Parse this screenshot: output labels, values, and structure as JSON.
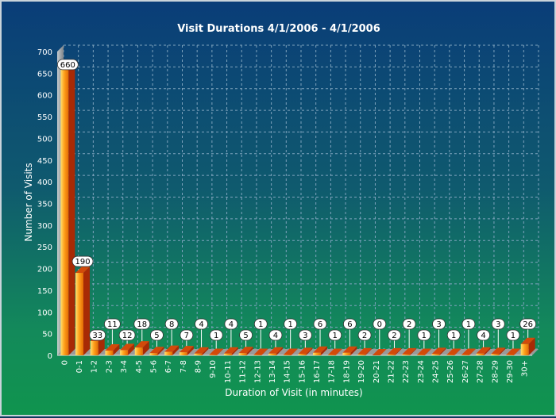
{
  "chart_data": {
    "type": "bar",
    "title": "Visit Durations 4/1/2006  - 4/1/2006",
    "xlabel": "Duration of Visit (in minutes)",
    "ylabel": "Number of Visits",
    "ylim": [
      0,
      700
    ],
    "yticks": [
      0,
      50,
      100,
      150,
      200,
      250,
      300,
      350,
      400,
      450,
      500,
      550,
      600,
      650,
      700
    ],
    "grid": true,
    "categories": [
      "0",
      "0-1",
      "1-2",
      "2-3",
      "3-4",
      "4-5",
      "5-6",
      "6-7",
      "7-8",
      "8-9",
      "9-10",
      "10-11",
      "11-12",
      "12-13",
      "13-14",
      "14-15",
      "15-16",
      "16-17",
      "17-18",
      "18-19",
      "19-20",
      "20-21",
      "21-22",
      "22-23",
      "23-24",
      "24-25",
      "25-26",
      "26-27",
      "27-28",
      "28-29",
      "29-30",
      "30+"
    ],
    "values": [
      660,
      190,
      33,
      11,
      12,
      18,
      5,
      8,
      7,
      4,
      1,
      4,
      5,
      1,
      4,
      1,
      3,
      6,
      1,
      6,
      2,
      0,
      2,
      2,
      1,
      3,
      1,
      1,
      4,
      3,
      1,
      26
    ],
    "colors": {
      "bar_front": "#ff9a1a",
      "bar_side": "#a82a05",
      "bar_highlight": "#ffe070",
      "grid": "#7fa3bd"
    }
  }
}
